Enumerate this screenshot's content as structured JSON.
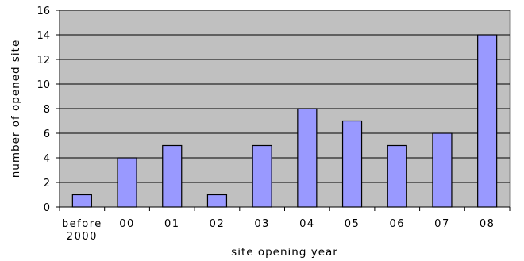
{
  "chart_data": {
    "type": "bar",
    "title": "",
    "xlabel": "site opening year",
    "ylabel": "number of opened site",
    "categories": [
      "before 2000",
      "00",
      "01",
      "02",
      "03",
      "04",
      "05",
      "06",
      "07",
      "08"
    ],
    "category_lines": [
      [
        "before",
        "2000"
      ],
      [
        "00"
      ],
      [
        "01"
      ],
      [
        "02"
      ],
      [
        "03"
      ],
      [
        "04"
      ],
      [
        "05"
      ],
      [
        "06"
      ],
      [
        "07"
      ],
      [
        "08"
      ]
    ],
    "values": [
      1,
      4,
      5,
      1,
      5,
      8,
      7,
      5,
      6,
      14
    ],
    "ylim": [
      0,
      16
    ],
    "yticks": [
      0,
      2,
      4,
      6,
      8,
      10,
      12,
      14,
      16
    ],
    "grid": true,
    "legend": "none",
    "colors": {
      "plot_background": "#c0c0c0",
      "bar_fill": "#9999ff",
      "bar_stroke": "#000000",
      "grid": "#000000"
    }
  }
}
